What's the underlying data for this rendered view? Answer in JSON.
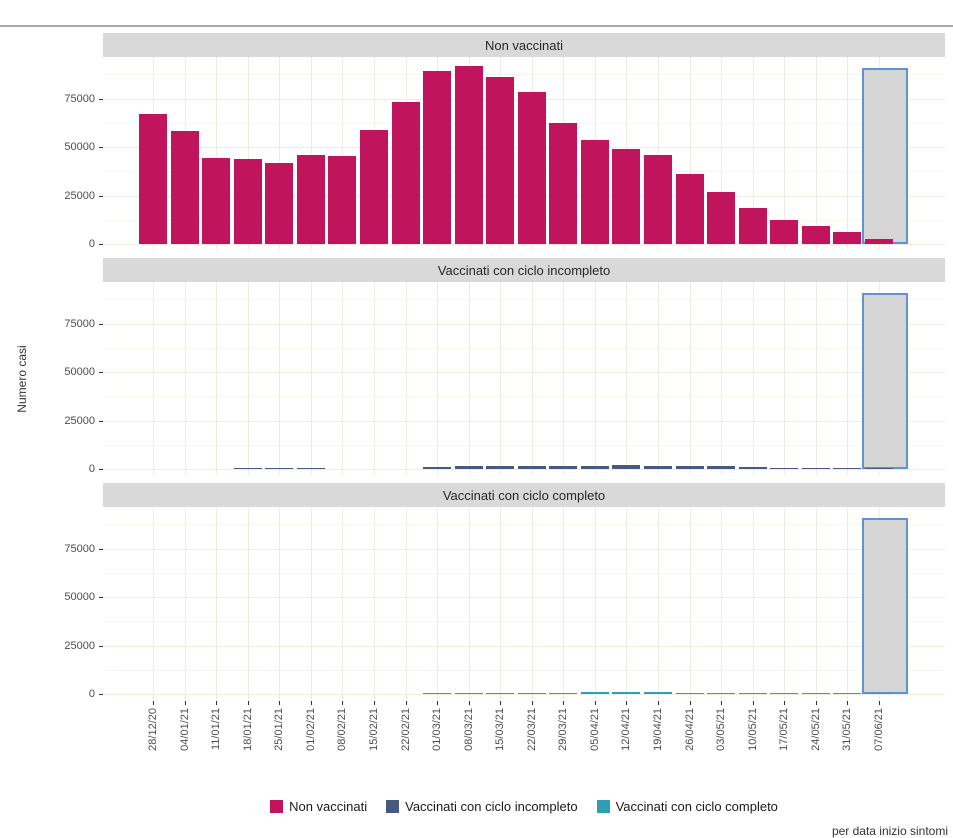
{
  "figure": {
    "caption": "per data inizio sintomi"
  },
  "chart_data": {
    "type": "bar",
    "title": "",
    "xlabel": "",
    "ylabel": "Numero casi",
    "ylim": [
      0,
      95000
    ],
    "yticks": [
      0,
      25000,
      50000,
      75000
    ],
    "grid": true,
    "legend_position": "bottom",
    "facet_layout": "stacked-rows",
    "facet_titles": [
      "Non vaccinati",
      "Vaccinati con ciclo incompleto",
      "Vaccinati con ciclo completo"
    ],
    "categories": [
      "28/12/20",
      "04/01/21",
      "11/01/21",
      "18/01/21",
      "25/01/21",
      "01/02/21",
      "08/02/21",
      "15/02/21",
      "22/02/21",
      "01/03/21",
      "08/03/21",
      "15/03/21",
      "22/03/21",
      "29/03/21",
      "05/04/21",
      "12/04/21",
      "19/04/21",
      "26/04/21",
      "03/05/21",
      "10/05/21",
      "17/05/21",
      "24/05/21",
      "31/05/21",
      "07/06/21"
    ],
    "series": [
      {
        "name": "Non vaccinati",
        "color": "#C0155C",
        "values": [
          67000,
          58000,
          44500,
          44000,
          42000,
          46000,
          45500,
          59000,
          73000,
          89000,
          91500,
          86000,
          78500,
          62500,
          53500,
          49000,
          46000,
          36000,
          27000,
          18500,
          12500,
          9500,
          6000,
          2500
        ]
      },
      {
        "name": "Vaccinati con ciclo incompleto",
        "color": "#46597F",
        "values": [
          0,
          0,
          0,
          300,
          300,
          300,
          0,
          0,
          0,
          850,
          1400,
          1700,
          1600,
          1400,
          1550,
          2050,
          1700,
          1700,
          1400,
          1000,
          700,
          500,
          250,
          100
        ]
      },
      {
        "name": "Vaccinati con ciclo completo",
        "color": "#2D9FB5",
        "values": [
          0,
          0,
          0,
          0,
          0,
          0,
          0,
          0,
          0,
          200,
          350,
          350,
          500,
          650,
          850,
          850,
          850,
          700,
          500,
          400,
          350,
          350,
          250,
          100
        ]
      }
    ],
    "highlight_region": {
      "category": "07/06/21",
      "top_value": 90500,
      "fill": "#D2D2D2",
      "border": "#5E93D8"
    }
  },
  "style_colors": {
    "strip_bg": "#D9D9D9",
    "grid_major": "#F1ECE1",
    "grid_minor": "#F7F4EC",
    "axis_text": "#4D4D4D",
    "highlight_border": "#5E93D8"
  }
}
